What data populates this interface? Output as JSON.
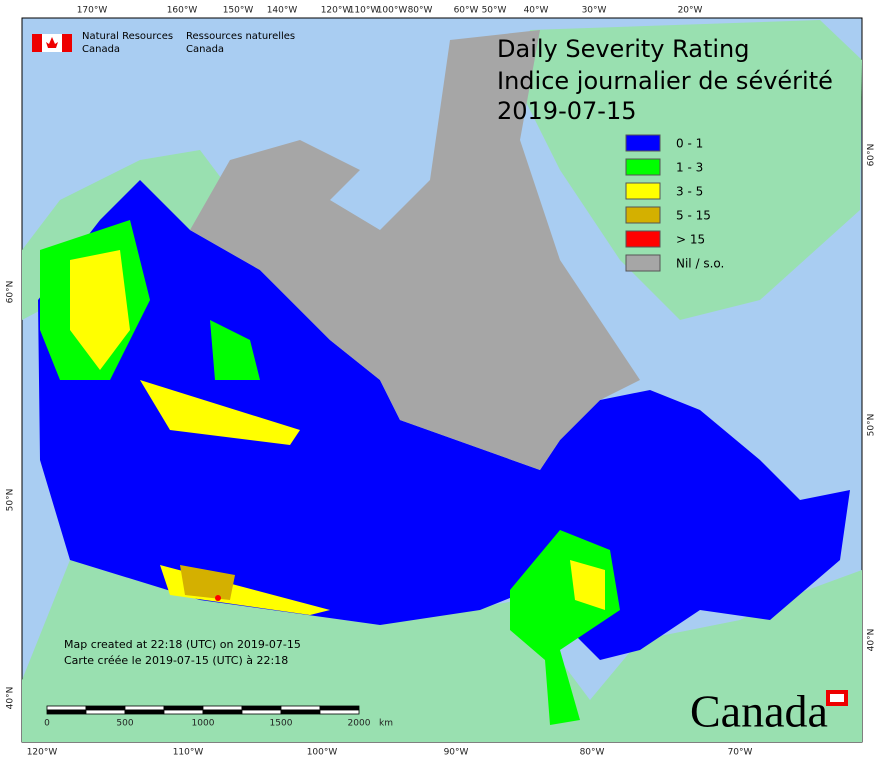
{
  "header": {
    "agency_en": [
      "Natural Resources",
      "Canada"
    ],
    "agency_fr": [
      "Ressources naturelles",
      "Canada"
    ]
  },
  "title": [
    "Daily Severity Rating",
    "Indice journalier de sévérité",
    "2019-07-15"
  ],
  "legend": [
    {
      "label": "0 - 1",
      "color": "#0000ff"
    },
    {
      "label": "1 - 3",
      "color": "#00ff00"
    },
    {
      "label": "3 - 5",
      "color": "#ffff00"
    },
    {
      "label": "5 - 15",
      "color": "#d4b000"
    },
    {
      "label": "> 15",
      "color": "#ff0000"
    },
    {
      "label": "Nil / s.o.",
      "color": "#a6a6a6"
    }
  ],
  "graticule": {
    "top": [
      "170°W",
      "160°W",
      "150°W",
      "140°W",
      "120°W",
      "110°W",
      "100°W",
      "80°W",
      "60°W",
      "50°W",
      "40°W",
      "30°W",
      "20°W"
    ],
    "bottom": [
      "120°W",
      "110°W",
      "100°W",
      "90°W",
      "80°W",
      "70°W"
    ],
    "left": [
      "60°N",
      "50°N",
      "40°N"
    ],
    "right": [
      "60°N",
      "50°N",
      "40°N"
    ]
  },
  "notes": [
    "Map created at 22:18 (UTC) on 2019-07-15",
    "Carte créée le 2019-07-15 (UTC) à 22:18"
  ],
  "scale_bar": {
    "labels": [
      "0",
      "500",
      "1000",
      "1500",
      "2000"
    ],
    "unit": "km"
  },
  "wordmark": "Canada"
}
